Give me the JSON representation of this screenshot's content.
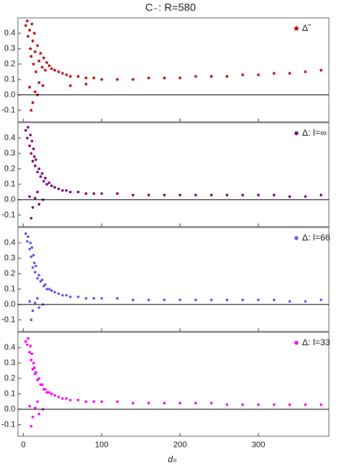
{
  "title": "C₋: R=580",
  "x_label": "dₕ",
  "chart_data": [
    {
      "type": "scatter",
      "xlim": [
        -7,
        390
      ],
      "ylim": [
        -0.175,
        0.5
      ],
      "xticks": [
        0,
        100,
        200,
        300
      ],
      "yticks": [
        -0.1,
        {
          "value": 0,
          "label": "0.0"
        },
        0.1,
        0.2,
        0.3,
        0.4
      ],
      "zero_line": true,
      "legend": "top-right",
      "series": [
        {
          "name": "Δ̃",
          "color": "#b30000",
          "marker": "star",
          "x": [
            3,
            5,
            6,
            8,
            9,
            10,
            11,
            12,
            13,
            14,
            15,
            16,
            18,
            20,
            22,
            24,
            26,
            28,
            30,
            33,
            36,
            40,
            45,
            50,
            55,
            60,
            70,
            80,
            90,
            100,
            120,
            140,
            160,
            180,
            200,
            220,
            240,
            260,
            280,
            300,
            320,
            340,
            360,
            380,
            8,
            12,
            15,
            20,
            25,
            10,
            18,
            60,
            80
          ],
          "y": [
            0.45,
            0.48,
            0.38,
            0.42,
            0.3,
            0.25,
            0.46,
            0.35,
            0.2,
            0.4,
            0.28,
            0.15,
            0.32,
            0.22,
            0.27,
            0.18,
            0.24,
            0.16,
            0.21,
            0.19,
            0.17,
            0.16,
            0.15,
            0.14,
            0.13,
            0.12,
            0.12,
            0.11,
            0.11,
            0.1,
            0.1,
            0.1,
            0.11,
            0.11,
            0.11,
            0.12,
            0.12,
            0.12,
            0.13,
            0.13,
            0.14,
            0.14,
            0.15,
            0.16,
            0.05,
            -0.05,
            0.02,
            0.08,
            0.06,
            -0.1,
            0,
            0.06,
            0.07
          ]
        }
      ]
    },
    {
      "type": "scatter",
      "xlim": [
        -7,
        390
      ],
      "ylim": [
        -0.175,
        0.5
      ],
      "xticks": [
        0,
        100,
        200,
        300
      ],
      "yticks": [
        -0.1,
        {
          "value": 0,
          "label": "0.0"
        },
        0.1,
        0.2,
        0.3,
        0.4
      ],
      "zero_line": true,
      "legend": "top-right",
      "series": [
        {
          "name": "Δ: l=∞",
          "color": "#800080",
          "marker": "circle",
          "x": [
            3,
            5,
            6,
            8,
            9,
            10,
            11,
            12,
            13,
            14,
            15,
            16,
            18,
            20,
            22,
            24,
            26,
            28,
            30,
            33,
            36,
            40,
            45,
            50,
            55,
            60,
            70,
            80,
            90,
            100,
            120,
            140,
            160,
            180,
            200,
            220,
            240,
            260,
            280,
            300,
            320,
            340,
            360,
            380,
            8,
            12,
            15,
            20,
            25,
            10,
            18
          ],
          "y": [
            0.45,
            0.4,
            0.47,
            0.35,
            0.42,
            0.3,
            0.38,
            0.25,
            0.33,
            0.28,
            0.22,
            0.26,
            0.18,
            0.2,
            0.15,
            0.17,
            0.12,
            0.14,
            0.1,
            0.11,
            0.09,
            0.08,
            0.07,
            0.06,
            0.06,
            0.05,
            0.05,
            0.04,
            0.04,
            0.04,
            0.04,
            0.03,
            0.03,
            0.03,
            0.03,
            0.03,
            0.03,
            0.03,
            0.03,
            0.03,
            0.03,
            0.02,
            0.02,
            0.03,
            0.02,
            -0.05,
            0.01,
            -0.03,
            0,
            -0.12,
            0.05
          ]
        }
      ]
    },
    {
      "type": "scatter",
      "xlim": [
        -7,
        390
      ],
      "ylim": [
        -0.175,
        0.5
      ],
      "xticks": [
        0,
        100,
        200,
        300
      ],
      "yticks": [
        -0.1,
        {
          "value": 0,
          "label": "0.0"
        },
        0.1,
        0.2,
        0.3,
        0.4
      ],
      "zero_line": true,
      "legend": "top-right",
      "series": [
        {
          "name": "Δ: l=66",
          "color": "#5c5cf5",
          "marker": "circle",
          "x": [
            3,
            5,
            6,
            8,
            9,
            10,
            11,
            12,
            13,
            14,
            15,
            16,
            18,
            20,
            22,
            24,
            26,
            28,
            30,
            33,
            36,
            40,
            45,
            50,
            55,
            60,
            70,
            80,
            90,
            100,
            120,
            140,
            160,
            180,
            200,
            220,
            240,
            260,
            280,
            300,
            320,
            340,
            360,
            380,
            8,
            12,
            15,
            20,
            25,
            10,
            18
          ],
          "y": [
            0.46,
            0.41,
            0.44,
            0.36,
            0.4,
            0.31,
            0.37,
            0.24,
            0.32,
            0.27,
            0.21,
            0.25,
            0.17,
            0.19,
            0.15,
            0.16,
            0.12,
            0.13,
            0.1,
            0.1,
            0.09,
            0.08,
            0.07,
            0.06,
            0.06,
            0.05,
            0.05,
            0.04,
            0.04,
            0.04,
            0.04,
            0.03,
            0.03,
            0.03,
            0.03,
            0.03,
            0.03,
            0.03,
            0.03,
            0.03,
            0.03,
            0.02,
            0.02,
            0.03,
            0.02,
            -0.04,
            0.01,
            -0.02,
            0,
            -0.1,
            0.04
          ]
        }
      ]
    },
    {
      "type": "scatter",
      "xlim": [
        -7,
        390
      ],
      "ylim": [
        -0.175,
        0.5
      ],
      "xticks": [
        0,
        100,
        200,
        300
      ],
      "yticks": [
        -0.1,
        {
          "value": 0,
          "label": "0.0"
        },
        0.1,
        0.2,
        0.3,
        0.4
      ],
      "zero_line": true,
      "legend": "top-right",
      "series": [
        {
          "name": "Δ: l=33",
          "color": "#ff00ff",
          "marker": "circle",
          "x": [
            3,
            5,
            6,
            8,
            9,
            10,
            11,
            12,
            13,
            14,
            15,
            16,
            18,
            20,
            22,
            24,
            26,
            28,
            30,
            33,
            36,
            40,
            45,
            50,
            55,
            60,
            70,
            80,
            90,
            100,
            120,
            140,
            160,
            180,
            200,
            220,
            240,
            260,
            280,
            300,
            320,
            340,
            360,
            380,
            8,
            12,
            15,
            20,
            25,
            10,
            18
          ],
          "y": [
            0.44,
            0.42,
            0.46,
            0.37,
            0.41,
            0.32,
            0.36,
            0.26,
            0.3,
            0.27,
            0.23,
            0.24,
            0.19,
            0.2,
            0.16,
            0.16,
            0.13,
            0.13,
            0.11,
            0.11,
            0.1,
            0.09,
            0.08,
            0.07,
            0.07,
            0.06,
            0.06,
            0.05,
            0.05,
            0.05,
            0.05,
            0.04,
            0.04,
            0.04,
            0.04,
            0.04,
            0.04,
            0.03,
            0.03,
            0.03,
            0.03,
            0.03,
            0.03,
            0.03,
            0.02,
            -0.05,
            0.01,
            -0.03,
            0,
            -0.11,
            0.05
          ]
        }
      ]
    }
  ]
}
